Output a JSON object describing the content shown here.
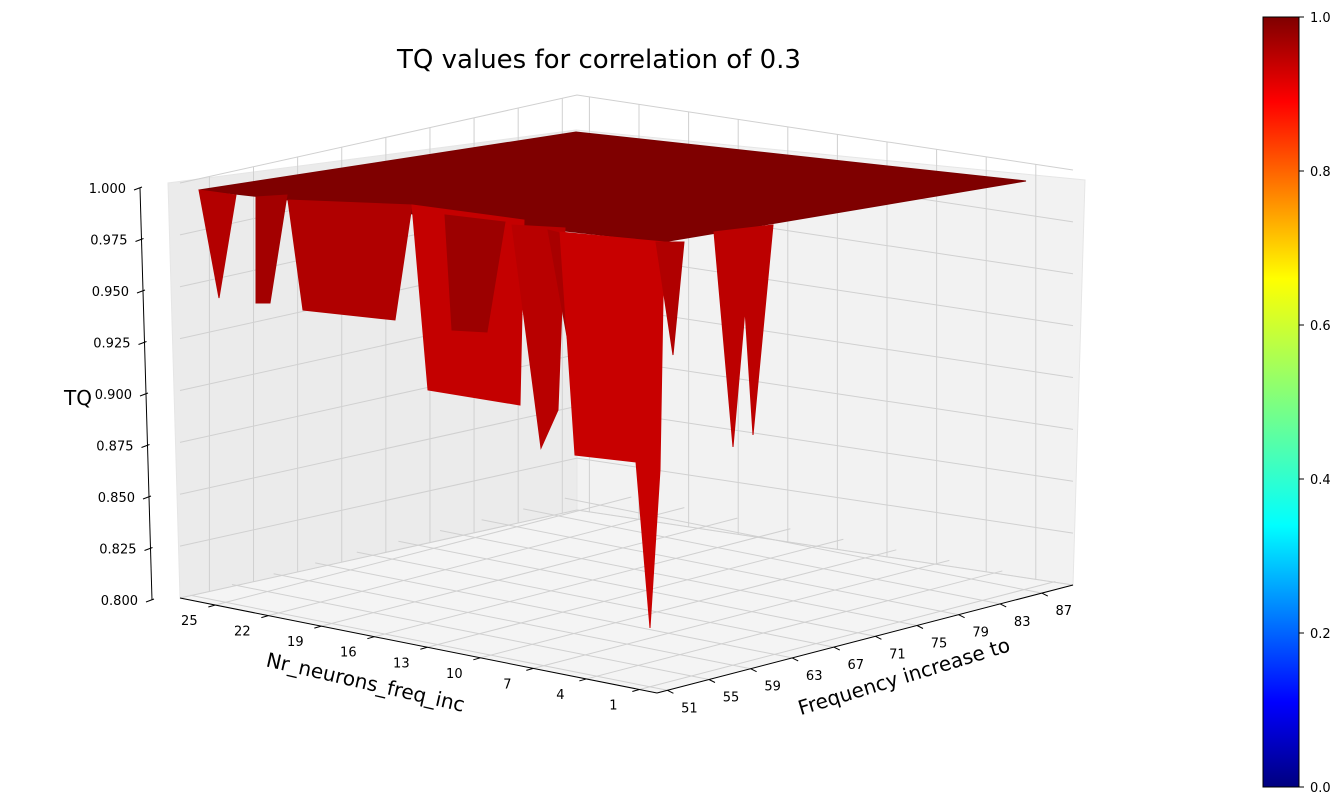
{
  "chart_data": {
    "type": "surface3d",
    "title": "TQ values for correlation of 0.3",
    "xlabel": "Frequency increase to",
    "ylabel": "Nr_neurons_freq_inc",
    "zlabel": "TQ",
    "x_ticks": [
      51,
      55,
      59,
      63,
      67,
      71,
      75,
      79,
      83,
      87
    ],
    "x_range": [
      50,
      90
    ],
    "y_ticks": [
      1,
      4,
      7,
      10,
      13,
      16,
      19,
      22,
      25
    ],
    "y_range": [
      0,
      27
    ],
    "z_ticks": [
      "0.800",
      "0.825",
      "0.850",
      "0.875",
      "0.900",
      "0.925",
      "0.950",
      "0.975",
      "1.000"
    ],
    "z_range": [
      0.8,
      1.0
    ],
    "colormap": "jet",
    "colorbar_ticks": [
      "0.0",
      "0.2",
      "0.4",
      "0.6",
      "0.8",
      "1.0"
    ],
    "colorbar_range": [
      0.0,
      1.0
    ],
    "surface_plateau_value": 1.0,
    "surface_dips": [
      {
        "freq": 51,
        "neurons": 26,
        "tq": 0.95
      },
      {
        "freq": 51,
        "neurons": 23,
        "tq": 0.945
      },
      {
        "freq": 51,
        "neurons": 20,
        "tq": 0.945
      },
      {
        "freq": 51,
        "neurons": 16,
        "tq": 0.945
      },
      {
        "freq": 55,
        "neurons": 13,
        "tq": 0.9
      },
      {
        "freq": 59,
        "neurons": 13,
        "tq": 0.93
      },
      {
        "freq": 63,
        "neurons": 10,
        "tq": 0.9
      },
      {
        "freq": 67,
        "neurons": 10,
        "tq": 0.89
      },
      {
        "freq": 71,
        "neurons": 7,
        "tq": 0.92
      },
      {
        "freq": 71,
        "neurons": 4,
        "tq": 0.8
      },
      {
        "freq": 79,
        "neurons": 4,
        "tq": 0.95
      },
      {
        "freq": 83,
        "neurons": 4,
        "tq": 0.88
      },
      {
        "freq": 87,
        "neurons": 4,
        "tq": 0.89
      }
    ],
    "grid": true,
    "view": "3d-perspective"
  }
}
